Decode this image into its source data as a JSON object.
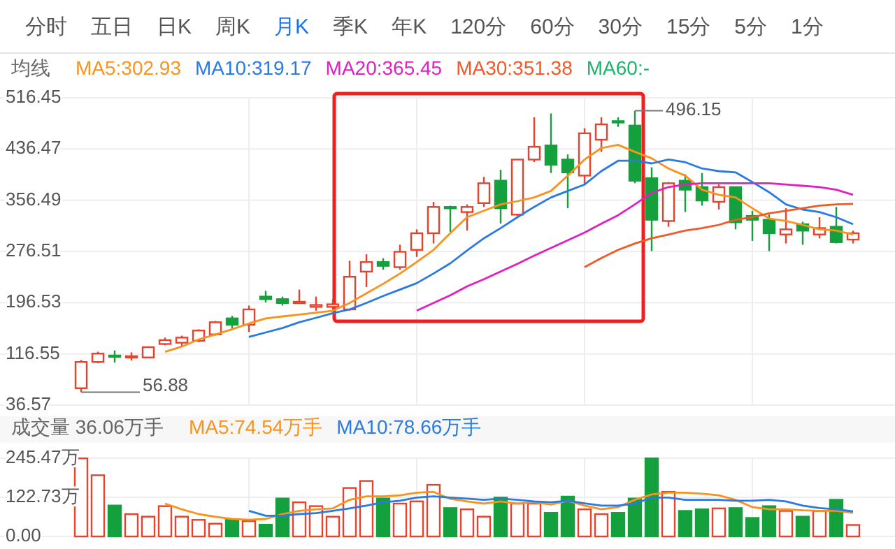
{
  "chart_data": [
    {
      "type": "other",
      "categories": [
        "分时",
        "五日",
        "日K",
        "周K",
        "月K",
        "季K",
        "年K",
        "120分",
        "60分",
        "30分",
        "15分",
        "5分",
        "1分"
      ],
      "colors": [
        "#555555",
        "#555555",
        "#555555",
        "#555555",
        "#1a73e8",
        "#555555",
        "#555555",
        "#555555",
        "#555555",
        "#555555",
        "#555555",
        "#555555",
        "#555555"
      ]
    },
    {
      "type": "candlestick",
      "legend_title": "均线",
      "legend": "top",
      "grid": true,
      "categories": [
        null,
        null,
        null,
        null,
        null,
        null,
        null,
        null,
        null,
        null,
        null,
        null,
        null,
        null,
        null,
        null,
        null,
        null,
        null,
        null,
        null,
        null,
        null,
        null,
        null,
        null,
        null,
        null,
        null,
        null,
        null,
        null,
        null,
        null,
        null,
        null,
        null,
        null,
        null,
        null,
        null,
        null,
        null,
        null,
        null,
        null,
        null
      ],
      "ylim": [
        36.57,
        516.45
      ],
      "yticks": [
        36.57,
        116.55,
        196.53,
        276.51,
        356.49,
        436.47,
        516.45
      ],
      "ohlc": [
        [
          63,
          107,
          56.88,
          104
        ],
        [
          104,
          120,
          102,
          117
        ],
        [
          114,
          122,
          103,
          112
        ],
        [
          111,
          119,
          106,
          113
        ],
        [
          111,
          128,
          110,
          127
        ],
        [
          132,
          142,
          130,
          138
        ],
        [
          134,
          145,
          127,
          142
        ],
        [
          137,
          155,
          135,
          153
        ],
        [
          147,
          168,
          145,
          166
        ],
        [
          172,
          176,
          155,
          162
        ],
        [
          162,
          192,
          151,
          186
        ],
        [
          206,
          215,
          197,
          202
        ],
        [
          202,
          206,
          192,
          196
        ],
        [
          196,
          217,
          195,
          198
        ],
        [
          190,
          206,
          184,
          193
        ],
        [
          190,
          202,
          186,
          194
        ],
        [
          186,
          262,
          184,
          237
        ],
        [
          245,
          272,
          221,
          260
        ],
        [
          260,
          266,
          248,
          254
        ],
        [
          252,
          287,
          248,
          276
        ],
        [
          279,
          311,
          268,
          305
        ],
        [
          305,
          354,
          289,
          346
        ],
        [
          346,
          348,
          307,
          344
        ],
        [
          338,
          350,
          309,
          346
        ],
        [
          352,
          393,
          346,
          383
        ],
        [
          387,
          404,
          320,
          344
        ],
        [
          334,
          421,
          332,
          420
        ],
        [
          420,
          486,
          416,
          440
        ],
        [
          442,
          492,
          399,
          412
        ],
        [
          420,
          428,
          344,
          400
        ],
        [
          395,
          469,
          381,
          461
        ],
        [
          451,
          486,
          432,
          475
        ],
        [
          480,
          486,
          471,
          478
        ],
        [
          473,
          496.15,
          383,
          387
        ],
        [
          391,
          408,
          277,
          326
        ],
        [
          324,
          385,
          315,
          383
        ],
        [
          387,
          397,
          338,
          373
        ],
        [
          377,
          399,
          348,
          356
        ],
        [
          354,
          381,
          342,
          377
        ],
        [
          377,
          377,
          311,
          322
        ],
        [
          332,
          340,
          293,
          326
        ],
        [
          326,
          334,
          277,
          305
        ],
        [
          303,
          344,
          289,
          311
        ],
        [
          319,
          323,
          287,
          309
        ],
        [
          303,
          330,
          297,
          313
        ],
        [
          315,
          346,
          289,
          291
        ],
        [
          295,
          309,
          289,
          305
        ]
      ],
      "colors": [
        "#e8412c",
        "#e8412c",
        "#14a03c",
        "#e8412c",
        "#e8412c",
        "#e8412c",
        "#e8412c",
        "#e8412c",
        "#e8412c",
        "#14a03c",
        "#e8412c",
        "#14a03c",
        "#14a03c",
        "#e8412c",
        "#e8412c",
        "#e8412c",
        "#e8412c",
        "#e8412c",
        "#14a03c",
        "#e8412c",
        "#e8412c",
        "#e8412c",
        "#14a03c",
        "#e8412c",
        "#e8412c",
        "#14a03c",
        "#e8412c",
        "#e8412c",
        "#14a03c",
        "#14a03c",
        "#e8412c",
        "#e8412c",
        "#14a03c",
        "#14a03c",
        "#14a03c",
        "#e8412c",
        "#14a03c",
        "#14a03c",
        "#e8412c",
        "#14a03c",
        "#14a03c",
        "#14a03c",
        "#e8412c",
        "#14a03c",
        "#e8412c",
        "#14a03c",
        "#e8412c"
      ],
      "series": [
        {
          "name": "MA5:302.93",
          "type": "line",
          "color": "#f7931e",
          "values": [
            null,
            null,
            null,
            null,
            null,
            120,
            128,
            139,
            147,
            155,
            164,
            172,
            175,
            178,
            181,
            184,
            196,
            211,
            226,
            242,
            260,
            279,
            305,
            330,
            340,
            350,
            355,
            361,
            371,
            395,
            420,
            438,
            443,
            432,
            422,
            406,
            395,
            373,
            365,
            361,
            344,
            328,
            324,
            318,
            311,
            309,
            303
          ]
        },
        {
          "name": "MA10:319.17",
          "type": "line",
          "color": "#2a7ae2",
          "values": [
            null,
            null,
            null,
            null,
            null,
            null,
            null,
            null,
            null,
            null,
            143,
            150,
            157,
            166,
            173,
            180,
            186,
            196,
            207,
            217,
            227,
            242,
            258,
            278,
            297,
            313,
            330,
            346,
            361,
            371,
            381,
            402,
            418,
            418,
            414,
            420,
            416,
            406,
            402,
            400,
            385,
            369,
            350,
            342,
            338,
            330,
            319
          ]
        },
        {
          "name": "MA20:365.45",
          "type": "line",
          "color": "#e020c0",
          "values": [
            null,
            null,
            null,
            null,
            null,
            null,
            null,
            null,
            null,
            null,
            null,
            null,
            null,
            null,
            null,
            null,
            null,
            null,
            null,
            null,
            184,
            196,
            208,
            222,
            233,
            245,
            257,
            270,
            282,
            294,
            306,
            320,
            333,
            350,
            368,
            377,
            381,
            383,
            383,
            383,
            383,
            383,
            381,
            379,
            377,
            373,
            365
          ]
        },
        {
          "name": "MA30:351.38",
          "type": "line",
          "color": "#f05a28",
          "values": [
            null,
            null,
            null,
            null,
            null,
            null,
            null,
            null,
            null,
            null,
            null,
            null,
            null,
            null,
            null,
            null,
            null,
            null,
            null,
            null,
            null,
            null,
            null,
            null,
            null,
            null,
            null,
            null,
            null,
            null,
            252,
            266,
            279,
            289,
            297,
            303,
            309,
            313,
            318,
            326,
            330,
            336,
            340,
            344,
            348,
            350,
            351
          ]
        },
        {
          "name": "MA60:-",
          "type": "line",
          "color": "#1db36b",
          "values": [
            null,
            null,
            null,
            null,
            null,
            null,
            null,
            null,
            null,
            null,
            null,
            null,
            null,
            null,
            null,
            null,
            null,
            null,
            null,
            null,
            null,
            null,
            null,
            null,
            null,
            null,
            null,
            null,
            null,
            null,
            null,
            null,
            null,
            null,
            null,
            null,
            null,
            null,
            null,
            null,
            null,
            null,
            null,
            null,
            null,
            null,
            null
          ]
        }
      ],
      "annotations": [
        "496.15",
        "56.88"
      ]
    },
    {
      "type": "bar",
      "title": "成交量 36.06万手",
      "legend": "top",
      "grid": true,
      "categories": [
        null,
        null,
        null,
        null,
        null,
        null,
        null,
        null,
        null,
        null,
        null,
        null,
        null,
        null,
        null,
        null,
        null,
        null,
        null,
        null,
        null,
        null,
        null,
        null,
        null,
        null,
        null,
        null,
        null,
        null,
        null,
        null,
        null,
        null,
        null,
        null,
        null,
        null,
        null,
        null,
        null,
        null,
        null,
        null,
        null,
        null,
        null
      ],
      "ylim": [
        0,
        245.47
      ],
      "yticks": [
        {
          "value": 0,
          "label": "0.00"
        },
        {
          "value": 122.73,
          "label": "122.73万"
        },
        {
          "value": 245.47,
          "label": "245.47万"
        }
      ],
      "series": [
        {
          "type": "bar",
          "values": [
            245,
            192,
            97,
            70,
            62,
            95,
            62,
            52,
            40,
            52,
            48,
            37,
            119,
            107,
            95,
            62,
            152,
            174,
            119,
            103,
            110,
            162,
            89,
            85,
            62,
            122,
            103,
            103,
            74,
            125,
            85,
            70,
            74,
            119,
            245,
            140,
            80,
            85,
            88,
            89,
            58,
            95,
            80,
            62,
            80,
            115,
            36.06
          ],
          "colors": [
            "#e8412c",
            "#e8412c",
            "#14a03c",
            "#e8412c",
            "#e8412c",
            "#e8412c",
            "#e8412c",
            "#e8412c",
            "#e8412c",
            "#14a03c",
            "#e8412c",
            "#14a03c",
            "#14a03c",
            "#e8412c",
            "#e8412c",
            "#e8412c",
            "#e8412c",
            "#e8412c",
            "#14a03c",
            "#e8412c",
            "#e8412c",
            "#e8412c",
            "#14a03c",
            "#e8412c",
            "#e8412c",
            "#14a03c",
            "#e8412c",
            "#e8412c",
            "#14a03c",
            "#14a03c",
            "#e8412c",
            "#e8412c",
            "#14a03c",
            "#14a03c",
            "#14a03c",
            "#e8412c",
            "#14a03c",
            "#14a03c",
            "#e8412c",
            "#14a03c",
            "#14a03c",
            "#14a03c",
            "#e8412c",
            "#14a03c",
            "#e8412c",
            "#14a03c",
            "#e8412c"
          ]
        },
        {
          "name": "MA5:74.54万手",
          "type": "line",
          "color": "#f7931e",
          "values": [
            null,
            null,
            null,
            null,
            null,
            103,
            85,
            70,
            62,
            55,
            52,
            55,
            70,
            80,
            85,
            88,
            115,
            126,
            126,
            129,
            137,
            140,
            118,
            110,
            103,
            110,
            103,
            107,
            100,
            112,
            97,
            85,
            92,
            115,
            132,
            137,
            137,
            134,
            129,
            115,
            92,
            85,
            85,
            82,
            80,
            80,
            74.54
          ]
        },
        {
          "name": "MA10:78.66万手",
          "type": "line",
          "color": "#2a7ae2",
          "values": [
            null,
            null,
            null,
            null,
            null,
            null,
            null,
            null,
            null,
            null,
            80,
            65,
            65,
            70,
            73,
            80,
            88,
            97,
            107,
            112,
            122,
            126,
            122,
            119,
            115,
            119,
            115,
            110,
            107,
            112,
            104,
            97,
            97,
            103,
            122,
            122,
            115,
            115,
            115,
            112,
            112,
            115,
            110,
            97,
            89,
            85,
            78.66
          ]
        }
      ]
    }
  ]
}
